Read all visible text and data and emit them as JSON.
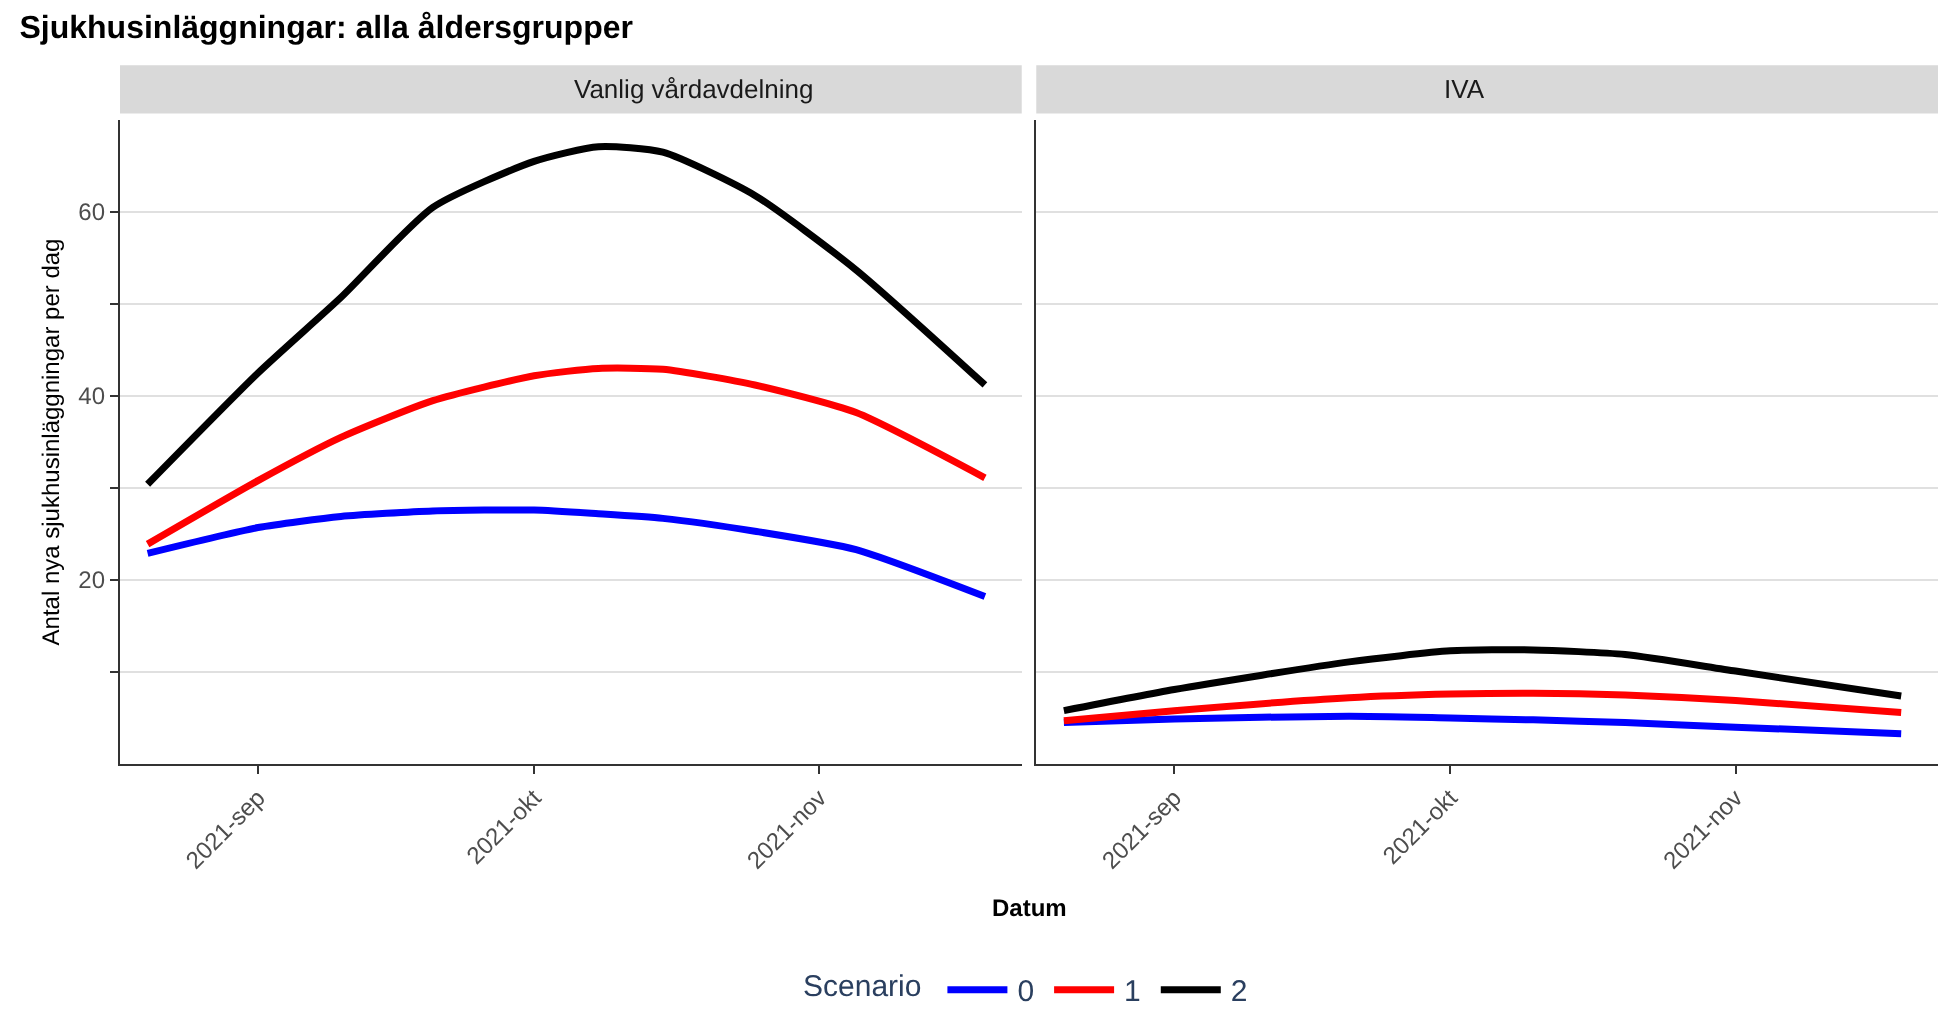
{
  "chart_data": [
    {
      "type": "line",
      "title": "Sjukhusinläggningar: alla åldersgrupper",
      "subtitle": "Vanlig vårdavdelning",
      "xlabel": "Datum",
      "ylabel": "Antal nya sjukhusinläggningar per dag",
      "legend_title": "Scenario",
      "legend": "bottom",
      "grid": "y",
      "x": [
        "2021-08-20",
        "2021-09-01",
        "2021-09-10",
        "2021-09-20",
        "2021-10-01",
        "2021-10-08",
        "2021-10-15",
        "2021-10-25",
        "2021-11-05",
        "2021-11-19"
      ],
      "xlim": [
        "2021-08-17",
        "2021-11-23"
      ],
      "xticks": [
        {
          "value": "2021-09-01",
          "label": "2021-sep"
        },
        {
          "value": "2021-10-01",
          "label": "2021-okt"
        },
        {
          "value": "2021-11-01",
          "label": "2021-nov"
        }
      ],
      "ylim": [
        0,
        70
      ],
      "yticks": [
        {
          "value": 10,
          "label": null
        },
        20,
        {
          "value": 30,
          "label": null
        },
        40,
        {
          "value": 50,
          "label": null
        },
        60
      ],
      "series": [
        {
          "name": "0",
          "color": "#0000ff",
          "values": [
            22.9,
            25.7,
            26.9,
            27.5,
            27.6,
            27.2,
            26.7,
            25.3,
            23.3,
            18.2
          ]
        },
        {
          "name": "1",
          "color": "#ff0000",
          "values": [
            23.9,
            30.8,
            35.5,
            39.5,
            42.2,
            43.0,
            42.9,
            41.2,
            38.2,
            31.1
          ]
        },
        {
          "name": "2",
          "color": "#000000",
          "values": [
            30.4,
            42.5,
            50.7,
            60.5,
            65.5,
            67.1,
            66.5,
            61.8,
            53.7,
            41.2
          ]
        }
      ]
    },
    {
      "type": "line",
      "subtitle": "IVA",
      "grid": "y",
      "tick_labels": "x",
      "x": [
        "2021-08-20",
        "2021-09-01",
        "2021-09-20",
        "2021-10-01",
        "2021-10-10",
        "2021-10-20",
        "2021-11-01",
        "2021-11-19"
      ],
      "xlim": [
        "2021-08-17",
        "2021-11-23"
      ],
      "xticks": [
        {
          "value": "2021-09-01",
          "label": "2021-sep"
        },
        {
          "value": "2021-10-01",
          "label": "2021-okt"
        },
        {
          "value": "2021-11-01",
          "label": "2021-nov"
        }
      ],
      "ylim": [
        0,
        70
      ],
      "yticks": [
        {
          "value": 10,
          "label": null
        },
        20,
        {
          "value": 30,
          "label": null
        },
        40,
        {
          "value": 50,
          "label": null
        },
        60
      ],
      "series": [
        {
          "name": "0",
          "color": "#0000ff",
          "values": [
            4.5,
            4.9,
            5.2,
            5.0,
            4.8,
            4.5,
            4.0,
            3.3
          ]
        },
        {
          "name": "1",
          "color": "#ff0000",
          "values": [
            4.7,
            5.8,
            7.2,
            7.6,
            7.7,
            7.5,
            6.9,
            5.6
          ]
        },
        {
          "name": "2",
          "color": "#000000",
          "values": [
            5.8,
            8.1,
            11.1,
            12.3,
            12.4,
            11.9,
            10.1,
            7.4
          ]
        }
      ]
    }
  ]
}
